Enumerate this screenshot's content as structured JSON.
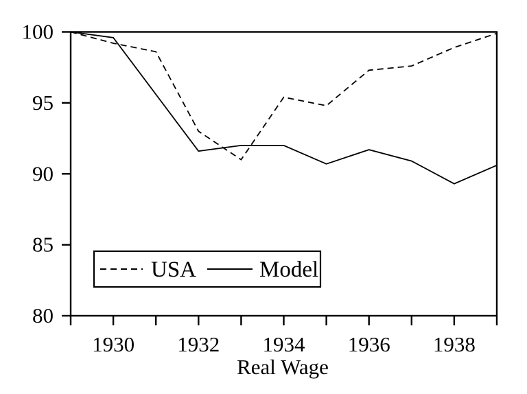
{
  "figure": {
    "background": "#ffffff",
    "line_color": "#000000",
    "text_color": "#000000"
  },
  "chart_data": {
    "type": "line",
    "title": "",
    "xlabel": "Real Wage",
    "ylabel": "",
    "x": [
      1929,
      1930,
      1931,
      1932,
      1933,
      1934,
      1935,
      1936,
      1937,
      1938,
      1939
    ],
    "series": [
      {
        "name": "USA",
        "style": "dashed",
        "color": "#000000",
        "values": [
          100,
          99.2,
          98.6,
          93.0,
          91.0,
          95.4,
          94.8,
          97.3,
          97.6,
          98.9,
          99.9
        ]
      },
      {
        "name": "Model",
        "style": "solid",
        "color": "#000000",
        "values": [
          100,
          99.6,
          95.6,
          91.6,
          92.0,
          92.0,
          90.7,
          91.7,
          90.9,
          89.3,
          90.6
        ]
      }
    ],
    "xlim": [
      1929,
      1939
    ],
    "ylim": [
      80,
      100
    ],
    "yticks": [
      80,
      85,
      90,
      95,
      100
    ],
    "ytick_labels": [
      "80",
      "85",
      "90",
      "95",
      "100"
    ],
    "xticks": [
      1929,
      1930,
      1931,
      1932,
      1933,
      1934,
      1935,
      1936,
      1937,
      1938,
      1939
    ],
    "xtick_labeled_years": [
      1930,
      1932,
      1934,
      1936,
      1938
    ],
    "xtick_labels": [
      "1930",
      "1932",
      "1934",
      "1936",
      "1938"
    ],
    "grid": false,
    "legend": {
      "position": "inside-lower-left-box",
      "entries": [
        "USA",
        "Model"
      ]
    }
  }
}
